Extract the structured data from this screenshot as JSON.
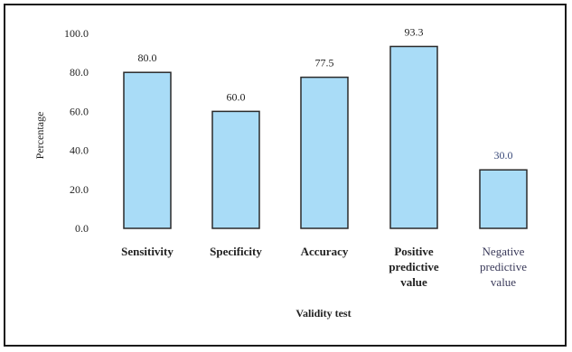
{
  "chart_data": {
    "type": "bar",
    "categories": [
      [
        "Sensitivity"
      ],
      [
        "Specificity"
      ],
      [
        "Accuracy"
      ],
      [
        "Positive",
        "predictive",
        "value"
      ],
      [
        "Negative",
        "predictive",
        "value"
      ]
    ],
    "values": [
      80.0,
      60.0,
      77.5,
      93.3,
      30.0
    ],
    "value_labels": [
      "80.0",
      "60.0",
      "77.5",
      "93.3",
      "30.0"
    ],
    "ylim": [
      0,
      100
    ],
    "y_ticks": [
      "0.0",
      "20.0",
      "40.0",
      "60.0",
      "80.0",
      "100.0"
    ],
    "xlabel": "Validity test",
    "ylabel": "Percentage",
    "grid": false,
    "colors": {
      "bar_fill": "#a9dcf7",
      "bar_stroke": "#2a2a2a"
    }
  }
}
